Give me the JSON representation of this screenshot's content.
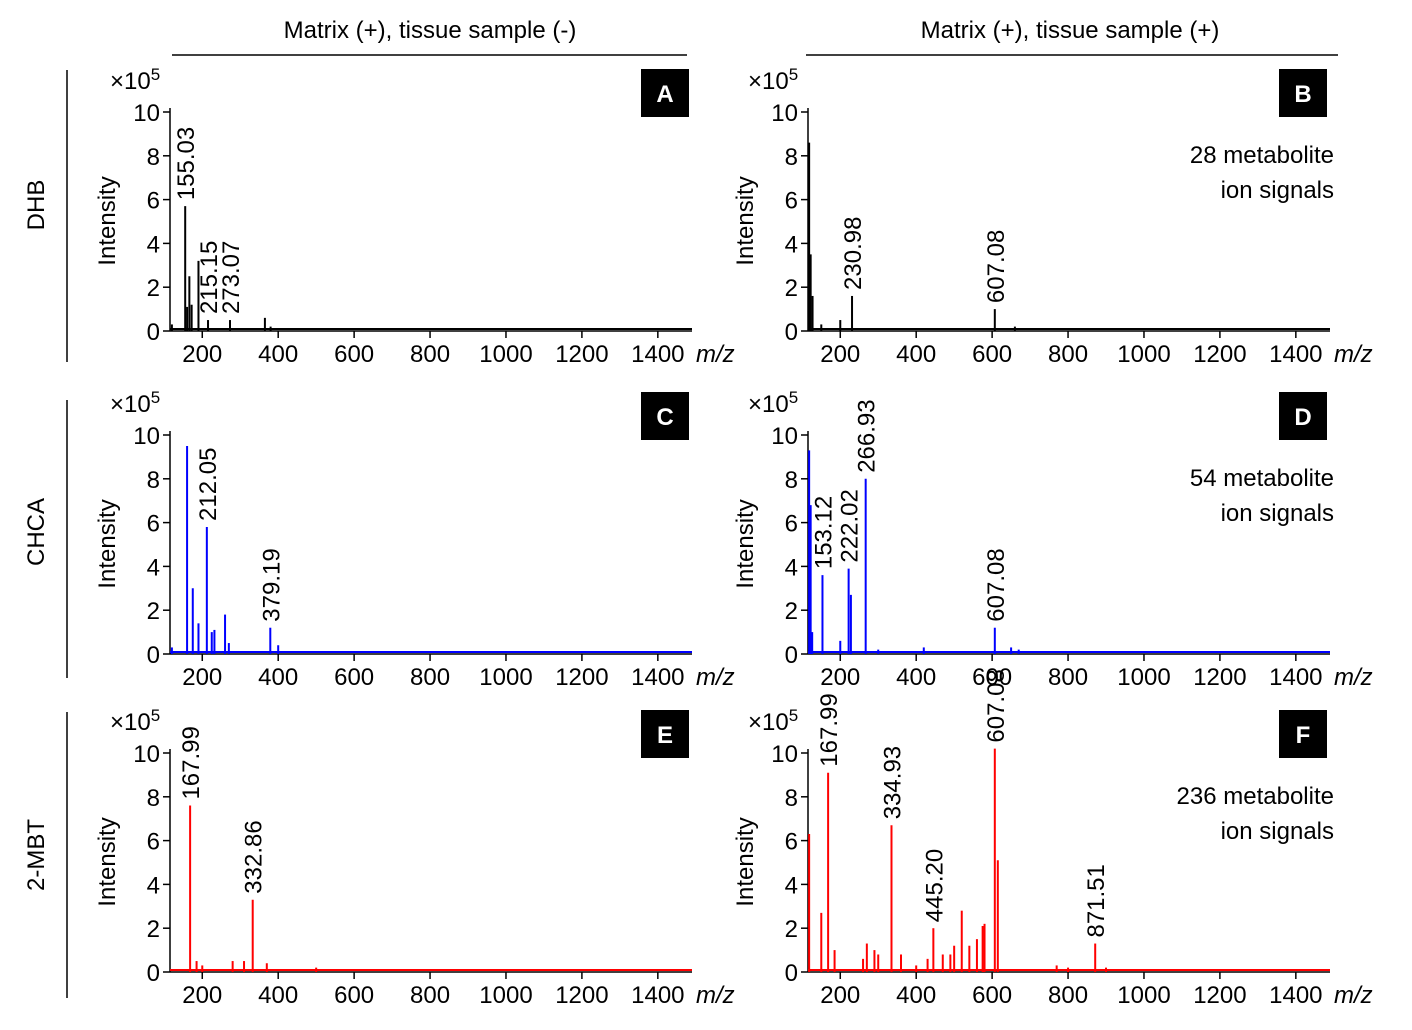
{
  "columns": [
    "Matrix (+), tissue sample (-)",
    "Matrix (+), tissue sample (+)"
  ],
  "rows": [
    "DHB",
    "CHCA",
    "2-MBT"
  ],
  "chart_data": [
    {
      "type": "stem",
      "panel": "A",
      "ylabel": "Intensity",
      "y_scale": {
        "base": "×10",
        "exponent": "5"
      },
      "xlabel": "m/z",
      "color": "#000000",
      "x": [
        120,
        155.03,
        160,
        166,
        172,
        190,
        215.15,
        273.07,
        365,
        380
      ],
      "values": [
        0.3,
        5.7,
        1.1,
        2.5,
        1.2,
        3.2,
        0.5,
        0.5,
        0.6,
        0.2
      ],
      "x_labels": [
        null,
        "155.03",
        null,
        null,
        null,
        null,
        "215.15",
        "273.07",
        null,
        null
      ],
      "xlim": [
        115,
        1490
      ],
      "xticks": [
        200,
        400,
        600,
        800,
        1000,
        1200,
        1400
      ],
      "ylim": [
        0,
        10
      ],
      "yticks": [
        0,
        2,
        4,
        6,
        8,
        10
      ]
    },
    {
      "type": "stem",
      "panel": "B",
      "note": [
        "28 metabolite",
        "ion signals"
      ],
      "ylabel": "Intensity",
      "y_scale": {
        "base": "×10",
        "exponent": "5"
      },
      "xlabel": "m/z",
      "color": "#000000",
      "x": [
        118,
        122,
        127,
        150,
        200,
        230.98,
        607.08,
        660
      ],
      "values": [
        8.6,
        3.5,
        1.6,
        0.3,
        0.5,
        1.6,
        1.0,
        0.2
      ],
      "x_labels": [
        null,
        null,
        null,
        null,
        null,
        "230.98",
        "607.08",
        null
      ],
      "xlim": [
        115,
        1490
      ],
      "xticks": [
        200,
        400,
        600,
        800,
        1000,
        1200,
        1400
      ],
      "ylim": [
        0,
        10
      ],
      "yticks": [
        0,
        2,
        4,
        6,
        8,
        10
      ]
    },
    {
      "type": "stem",
      "panel": "C",
      "ylabel": "Intensity",
      "y_scale": {
        "base": "×10",
        "exponent": "5"
      },
      "xlabel": "m/z",
      "color": "#0000ff",
      "x": [
        120,
        160,
        175,
        190,
        212.05,
        225,
        232,
        260,
        270,
        379.19,
        400
      ],
      "values": [
        0.3,
        9.5,
        3.0,
        1.4,
        5.8,
        1.0,
        1.1,
        1.8,
        0.5,
        1.2,
        0.4
      ],
      "x_labels": [
        null,
        null,
        null,
        null,
        "212.05",
        null,
        null,
        null,
        null,
        "379.19",
        null
      ],
      "xlim": [
        115,
        1490
      ],
      "xticks": [
        200,
        400,
        600,
        800,
        1000,
        1200,
        1400
      ],
      "ylim": [
        0,
        10
      ],
      "yticks": [
        0,
        2,
        4,
        6,
        8,
        10
      ]
    },
    {
      "type": "stem",
      "panel": "D",
      "note": [
        "54 metabolite",
        "ion signals"
      ],
      "ylabel": "Intensity",
      "y_scale": {
        "base": "×10",
        "exponent": "5"
      },
      "xlabel": "m/z",
      "color": "#0000ff",
      "x": [
        118,
        122,
        126,
        153.12,
        200,
        222.02,
        228,
        266.93,
        300,
        420,
        607.08,
        650,
        670
      ],
      "values": [
        9.3,
        6.8,
        1.0,
        3.6,
        0.6,
        3.9,
        2.7,
        8.0,
        0.2,
        0.3,
        1.2,
        0.3,
        0.2
      ],
      "x_labels": [
        null,
        null,
        null,
        "153.12",
        null,
        "222.02",
        null,
        "266.93",
        null,
        null,
        "607.08",
        null,
        null
      ],
      "xlim": [
        115,
        1490
      ],
      "xticks": [
        200,
        400,
        600,
        800,
        1000,
        1200,
        1400
      ],
      "ylim": [
        0,
        10
      ],
      "yticks": [
        0,
        2,
        4,
        6,
        8,
        10
      ]
    },
    {
      "type": "stem",
      "panel": "E",
      "ylabel": "Intensity",
      "y_scale": {
        "base": "×10",
        "exponent": "5"
      },
      "xlabel": "m/z",
      "color": "#ff0000",
      "x": [
        167.99,
        185,
        200,
        280,
        310,
        332.86,
        370,
        500
      ],
      "values": [
        7.6,
        0.5,
        0.3,
        0.5,
        0.5,
        3.3,
        0.4,
        0.2
      ],
      "x_labels": [
        "167.99",
        null,
        null,
        null,
        null,
        "332.86",
        null,
        null
      ],
      "xlim": [
        115,
        1490
      ],
      "xticks": [
        200,
        400,
        600,
        800,
        1000,
        1200,
        1400
      ],
      "ylim": [
        0,
        10
      ],
      "yticks": [
        0,
        2,
        4,
        6,
        8,
        10
      ]
    },
    {
      "type": "stem",
      "panel": "F",
      "note": [
        "236 metabolite",
        "ion signals"
      ],
      "ylabel": "Intensity",
      "y_scale": {
        "base": "×10",
        "exponent": "5"
      },
      "xlabel": "m/z",
      "color": "#ff0000",
      "x": [
        118,
        150,
        167.99,
        185,
        260,
        270,
        290,
        300,
        334.93,
        360,
        400,
        430,
        445.2,
        470,
        490,
        500,
        520,
        540,
        560,
        575,
        580,
        607.08,
        615,
        770,
        800,
        871.51,
        900
      ],
      "values": [
        6.3,
        2.7,
        9.1,
        1.0,
        0.6,
        1.3,
        1.0,
        0.8,
        6.7,
        0.8,
        0.3,
        0.6,
        2.0,
        0.8,
        0.8,
        1.2,
        2.8,
        1.2,
        1.5,
        2.1,
        2.2,
        10.2,
        5.1,
        0.3,
        0.2,
        1.3,
        0.2
      ],
      "x_labels": [
        null,
        null,
        "167.99",
        null,
        null,
        null,
        null,
        null,
        "334.93",
        null,
        null,
        null,
        "445.20",
        null,
        null,
        null,
        null,
        null,
        null,
        null,
        null,
        "607.08",
        null,
        null,
        null,
        "871.51",
        null
      ],
      "xlim": [
        115,
        1490
      ],
      "xticks": [
        200,
        400,
        600,
        800,
        1000,
        1200,
        1400
      ],
      "ylim": [
        0,
        10
      ],
      "yticks": [
        0,
        2,
        4,
        6,
        8,
        10
      ]
    }
  ]
}
